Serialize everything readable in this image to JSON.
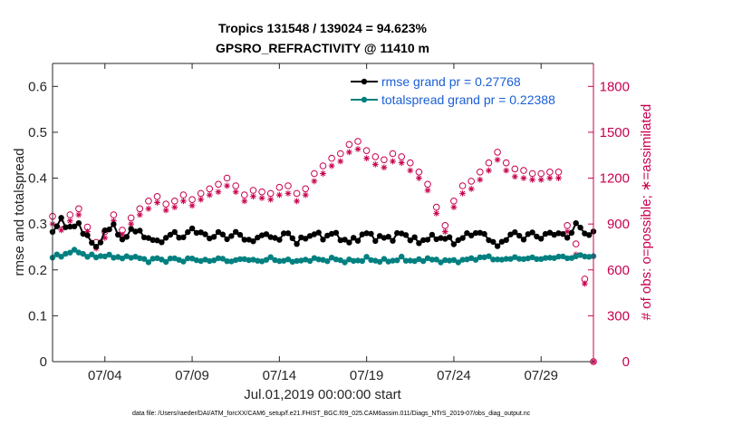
{
  "chart_data": {
    "type": "line",
    "title_line1": "Tropics 131548 / 139024 = 94.623%",
    "title_line2": "GPSRO_REFRACTIVITY @ 11410 m",
    "xlabel": "Jul.01,2019 00:00:00 start",
    "ylabel_left": "rmse and totalspread",
    "ylabel_right": "# of obs: o=possible; ∗=assimilated",
    "footer": "data file: /Users/raeder/DAI/ATM_forcXX/CAM6_setup/f.e21.FHIST_BGC.f09_025.CAM6assim.011/Diags_NTrS_2019-07/obs_diag_output.nc",
    "x_range_days": [
      1.0,
      32.0
    ],
    "x_tick_days": [
      4,
      9,
      14,
      19,
      24,
      29
    ],
    "x_tick_labels": [
      "07/04",
      "07/09",
      "07/14",
      "07/19",
      "07/24",
      "07/29"
    ],
    "ylim_left": [
      0,
      0.65
    ],
    "y_ticks_left": [
      "0",
      "0.1",
      "0.2",
      "0.3",
      "0.4",
      "0.5",
      "0.6"
    ],
    "ylim_right": [
      0,
      1950
    ],
    "y_ticks_right": [
      "0",
      "300",
      "600",
      "900",
      "1200",
      "1500",
      "1800"
    ],
    "colors": {
      "rmse": "#000000",
      "spread": "#008080",
      "obs": "#c8004f",
      "legend_text": "#1a5fd6"
    },
    "series": [
      {
        "name": "rmse",
        "legend": "rmse grand pr = 0.27768",
        "anchor_days": [
          1.0,
          1.5,
          2.0,
          2.5,
          3.0,
          3.5,
          4.0,
          4.5,
          5.0,
          5.5,
          6.0,
          6.5,
          7.0,
          7.5,
          8.0,
          8.5,
          9.0,
          9.5,
          10.0,
          10.5,
          11.0,
          11.5,
          12.0,
          12.5,
          13.0,
          13.5,
          14.0,
          14.5,
          15.0,
          15.5,
          16.0,
          16.5,
          17.0,
          17.5,
          18.0,
          18.5,
          19.0,
          19.5,
          20.0,
          20.5,
          21.0,
          21.5,
          22.0,
          22.5,
          23.0,
          23.5,
          24.0,
          24.5,
          25.0,
          25.5,
          26.0,
          26.5,
          27.0,
          27.5,
          28.0,
          28.5,
          29.0,
          29.5,
          30.0,
          30.5,
          31.0,
          31.5,
          32.0
        ],
        "values": [
          0.28,
          0.31,
          0.29,
          0.3,
          0.27,
          0.25,
          0.28,
          0.3,
          0.26,
          0.29,
          0.28,
          0.27,
          0.26,
          0.27,
          0.28,
          0.27,
          0.29,
          0.28,
          0.27,
          0.28,
          0.27,
          0.28,
          0.27,
          0.26,
          0.28,
          0.27,
          0.27,
          0.28,
          0.26,
          0.27,
          0.28,
          0.27,
          0.28,
          0.27,
          0.26,
          0.27,
          0.28,
          0.27,
          0.27,
          0.27,
          0.28,
          0.27,
          0.26,
          0.27,
          0.27,
          0.27,
          0.26,
          0.27,
          0.28,
          0.28,
          0.27,
          0.25,
          0.27,
          0.28,
          0.27,
          0.28,
          0.27,
          0.28,
          0.28,
          0.27,
          0.3,
          0.28,
          0.28
        ]
      },
      {
        "name": "totalspread",
        "legend": "totalspread grand pr = 0.22388",
        "anchor_days": [
          1.0,
          1.5,
          2.0,
          2.5,
          3.0,
          3.5,
          4.0,
          4.5,
          5.0,
          5.5,
          6.0,
          6.5,
          7.0,
          7.5,
          8.0,
          8.5,
          9.0,
          9.5,
          10.0,
          10.5,
          11.0,
          11.5,
          12.0,
          12.5,
          13.0,
          13.5,
          14.0,
          14.5,
          15.0,
          15.5,
          16.0,
          16.5,
          17.0,
          17.5,
          18.0,
          18.5,
          19.0,
          19.5,
          20.0,
          20.5,
          21.0,
          21.5,
          22.0,
          22.5,
          23.0,
          23.5,
          24.0,
          24.5,
          25.0,
          25.5,
          26.0,
          26.5,
          27.0,
          27.5,
          28.0,
          28.5,
          29.0,
          29.5,
          30.0,
          30.5,
          31.0,
          31.5,
          32.0
        ],
        "values": [
          0.23,
          0.23,
          0.24,
          0.24,
          0.23,
          0.23,
          0.23,
          0.23,
          0.225,
          0.23,
          0.225,
          0.22,
          0.225,
          0.22,
          0.225,
          0.22,
          0.225,
          0.22,
          0.22,
          0.225,
          0.22,
          0.22,
          0.225,
          0.22,
          0.22,
          0.225,
          0.22,
          0.22,
          0.22,
          0.22,
          0.225,
          0.22,
          0.225,
          0.22,
          0.22,
          0.22,
          0.225,
          0.22,
          0.22,
          0.22,
          0.225,
          0.22,
          0.22,
          0.225,
          0.22,
          0.22,
          0.22,
          0.22,
          0.225,
          0.225,
          0.23,
          0.22,
          0.225,
          0.225,
          0.225,
          0.225,
          0.225,
          0.225,
          0.23,
          0.225,
          0.23,
          0.23,
          0.23
        ]
      },
      {
        "name": "obs_possible",
        "marker": "o",
        "axis": "right",
        "anchor_days": [
          1.0,
          1.5,
          2.0,
          2.5,
          3.0,
          3.5,
          4.0,
          4.5,
          5.0,
          5.5,
          6.0,
          6.5,
          7.0,
          7.5,
          8.0,
          8.5,
          9.0,
          9.5,
          10.0,
          10.5,
          11.0,
          11.5,
          12.0,
          12.5,
          13.0,
          13.5,
          14.0,
          14.5,
          15.0,
          15.5,
          16.0,
          16.5,
          17.0,
          17.5,
          18.0,
          18.5,
          19.0,
          19.5,
          20.0,
          20.5,
          21.0,
          21.5,
          22.0,
          22.5,
          23.0,
          23.5,
          24.0,
          24.5,
          25.0,
          25.5,
          26.0,
          26.5,
          27.0,
          27.5,
          28.0,
          28.5,
          29.0,
          29.5,
          30.0,
          30.5,
          31.0,
          31.5,
          32.0
        ],
        "values": [
          950,
          900,
          960,
          1000,
          880,
          780,
          850,
          960,
          860,
          940,
          1000,
          1050,
          1080,
          1030,
          1050,
          1090,
          1060,
          1100,
          1130,
          1160,
          1200,
          1150,
          1090,
          1120,
          1110,
          1100,
          1140,
          1150,
          1100,
          1130,
          1230,
          1280,
          1330,
          1360,
          1420,
          1440,
          1380,
          1340,
          1320,
          1360,
          1340,
          1300,
          1240,
          1160,
          1010,
          890,
          1050,
          1150,
          1180,
          1240,
          1300,
          1370,
          1300,
          1260,
          1250,
          1230,
          1230,
          1240,
          1240,
          890,
          770,
          540,
          0
        ]
      },
      {
        "name": "obs_assimilated",
        "marker": "*",
        "axis": "right",
        "anchor_days": [
          1.0,
          1.5,
          2.0,
          2.5,
          3.0,
          3.5,
          4.0,
          4.5,
          5.0,
          5.5,
          6.0,
          6.5,
          7.0,
          7.5,
          8.0,
          8.5,
          9.0,
          9.5,
          10.0,
          10.5,
          11.0,
          11.5,
          12.0,
          12.5,
          13.0,
          13.5,
          14.0,
          14.5,
          15.0,
          15.5,
          16.0,
          16.5,
          17.0,
          17.5,
          18.0,
          18.5,
          19.0,
          19.5,
          20.0,
          20.5,
          21.0,
          21.5,
          22.0,
          22.5,
          23.0,
          23.5,
          24.0,
          24.5,
          25.0,
          25.5,
          26.0,
          26.5,
          27.0,
          27.5,
          28.0,
          28.5,
          29.0,
          29.5,
          30.0,
          30.5,
          31.0,
          31.5,
          32.0
        ],
        "values": [
          900,
          860,
          920,
          960,
          850,
          740,
          810,
          920,
          830,
          900,
          960,
          1000,
          1040,
          990,
          1010,
          1050,
          1020,
          1060,
          1090,
          1110,
          1150,
          1110,
          1050,
          1080,
          1070,
          1060,
          1090,
          1100,
          1050,
          1090,
          1180,
          1230,
          1280,
          1310,
          1370,
          1390,
          1330,
          1290,
          1270,
          1310,
          1300,
          1250,
          1200,
          1120,
          970,
          850,
          1010,
          1100,
          1130,
          1190,
          1250,
          1320,
          1250,
          1210,
          1200,
          1190,
          1190,
          1200,
          1200,
          850,
          700,
          510,
          0
        ]
      }
    ]
  }
}
